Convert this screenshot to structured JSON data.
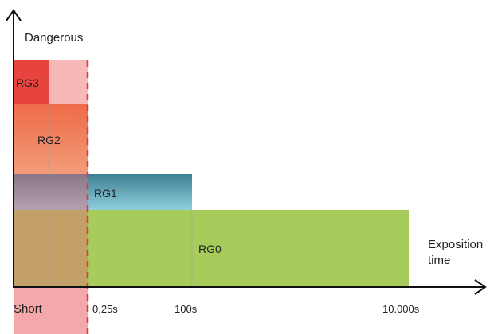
{
  "diagram": {
    "y_axis_label": "Dangerous",
    "x_axis_label_line1": "Exposition",
    "x_axis_label_line2": "time",
    "short_label": "Short",
    "ticks": [
      "0,25s",
      "100s",
      "10.000s"
    ],
    "groups": [
      "RG3",
      "RG2",
      "RG1",
      "RG0"
    ]
  },
  "colors": {
    "rg3": "#e8443e",
    "rg2": "#ef7a52",
    "rg1": "#5fa0b3",
    "rg0": "#a7cc5c",
    "short_band": "#f4a8aa",
    "short_limit": "#e03a3a",
    "axis": "#111111"
  }
}
